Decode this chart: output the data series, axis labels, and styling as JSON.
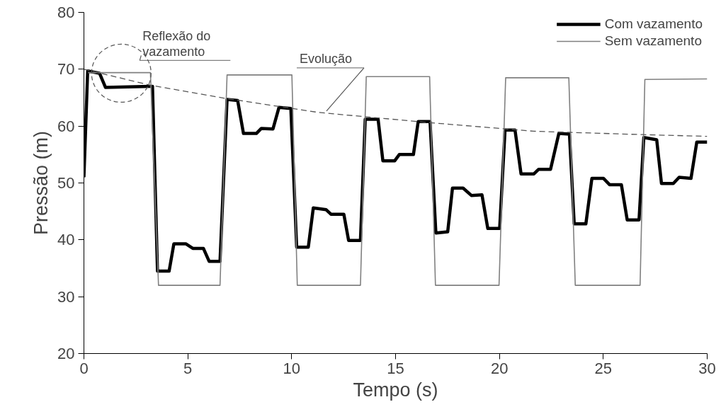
{
  "chart_data": {
    "type": "line",
    "xlabel": "Tempo (s)",
    "ylabel": "Pressão (m)",
    "xlim": [
      0,
      30
    ],
    "ylim": [
      20,
      80
    ],
    "xticks": [
      0,
      5,
      10,
      15,
      20,
      25,
      30
    ],
    "yticks": [
      20,
      30,
      40,
      50,
      60,
      70,
      80
    ],
    "grid": false,
    "legend": "top right",
    "marker": "none",
    "series": [
      {
        "name": "Com vazamento",
        "color": "#000000",
        "line_style": "solid",
        "x": [
          0,
          0.18,
          0.75,
          1.04,
          3.19,
          3.3,
          3.54,
          4.1,
          4.33,
          4.9,
          5.24,
          5.75,
          6.03,
          6.55,
          6.89,
          7.4,
          7.68,
          8.3,
          8.54,
          9.1,
          9.39,
          9.96,
          10.24,
          10.8,
          11.04,
          11.66,
          11.89,
          12.51,
          12.74,
          13.31,
          13.54,
          14.16,
          14.39,
          14.96,
          15.18,
          15.86,
          16.09,
          16.66,
          16.94,
          17.51,
          17.74,
          18.25,
          18.65,
          19.16,
          19.44,
          20.01,
          20.27,
          20.75,
          21.04,
          21.66,
          21.89,
          22.46,
          22.86,
          23.37,
          23.6,
          24.16,
          24.45,
          25.01,
          25.3,
          25.87,
          26.15,
          26.72,
          26.95,
          27.57,
          27.8,
          28.37,
          28.65,
          29.22,
          29.5,
          30
        ],
        "values": [
          51.0,
          69.7,
          69.3,
          66.8,
          67.0,
          67.0,
          34.5,
          34.5,
          39.3,
          39.3,
          38.5,
          38.5,
          36.2,
          36.2,
          64.7,
          64.5,
          58.7,
          58.7,
          59.6,
          59.5,
          63.3,
          63.1,
          38.7,
          38.7,
          45.6,
          45.3,
          44.5,
          44.5,
          39.9,
          39.9,
          61.2,
          61.2,
          53.9,
          53.9,
          55.0,
          55.0,
          60.8,
          60.8,
          41.2,
          41.4,
          49.1,
          49.1,
          47.8,
          47.9,
          42.0,
          42.0,
          59.3,
          59.3,
          51.6,
          51.6,
          52.4,
          52.4,
          58.7,
          58.6,
          42.8,
          42.8,
          50.8,
          50.8,
          49.7,
          49.7,
          43.5,
          43.5,
          58.0,
          57.6,
          49.9,
          49.9,
          51.0,
          50.8,
          57.2,
          57.2
        ]
      },
      {
        "name": "Sem vazamento",
        "color": "#808080",
        "line_style": "solid",
        "x": [
          0.2,
          3.2,
          3.59,
          6.55,
          6.89,
          10.01,
          10.27,
          13.31,
          13.59,
          16.64,
          16.92,
          19.98,
          20.3,
          23.34,
          23.65,
          26.77,
          27.0,
          30
        ],
        "values": [
          69.4,
          69.4,
          32.0,
          32.0,
          69.0,
          69.0,
          32.0,
          32.0,
          68.7,
          68.7,
          32.0,
          32.0,
          68.5,
          68.5,
          32.0,
          32.0,
          68.2,
          68.3
        ]
      },
      {
        "name": "Evolução",
        "color": "#555555",
        "line_style": "dashed",
        "x": [
          0,
          3.19,
          6.77,
          11.3,
          16.66,
          21.65,
          23.36,
          26.89,
          30
        ],
        "values": [
          70.0,
          67.2,
          64.9,
          62.4,
          60.6,
          59.1,
          58.9,
          58.5,
          58.2
        ]
      }
    ],
    "annotations": [
      {
        "text": "Reflexão do\nvazamento",
        "x": 1.8,
        "y": 69.3
      }
    ]
  }
}
